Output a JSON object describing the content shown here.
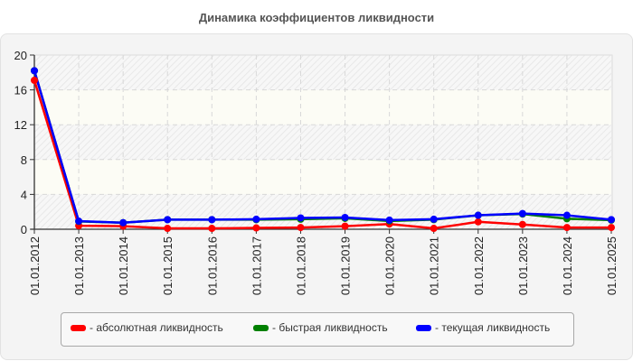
{
  "title": "Динамика коэффициентов ликвидности",
  "legend": [
    {
      "label": "- абсолютная ликвидность",
      "color": "#ff0000"
    },
    {
      "label": "- быстрая ликвидность",
      "color": "#008000"
    },
    {
      "label": "- текущая ликвидность",
      "color": "#0000ff"
    }
  ],
  "chart_data": {
    "type": "line",
    "title": "Динамика коэффициентов ликвидности",
    "xlabel": "",
    "ylabel": "",
    "ylim": [
      0,
      20
    ],
    "yticks": [
      0,
      4,
      8,
      12,
      16,
      20
    ],
    "grid": true,
    "legend_position": "bottom",
    "categories": [
      "01.01.2012",
      "01.01.2013",
      "01.01.2014",
      "01.01.2015",
      "01.01.2016",
      "01.01.2017",
      "01.01.2018",
      "01.01.2019",
      "01.01.2020",
      "01.01.2021",
      "01.01.2022",
      "01.01.2023",
      "01.01.2024",
      "01.01.2025"
    ],
    "series": [
      {
        "name": "абсолютная ликвидность",
        "color": "#ff0000",
        "values": [
          17.1,
          0.4,
          0.35,
          0.1,
          0.1,
          0.15,
          0.2,
          0.35,
          0.6,
          0.1,
          0.85,
          0.55,
          0.2,
          0.2
        ]
      },
      {
        "name": "быстрая ликвидность",
        "color": "#008000",
        "values": [
          18.2,
          0.9,
          0.75,
          1.1,
          1.1,
          1.1,
          1.15,
          1.25,
          0.95,
          1.1,
          1.6,
          1.75,
          1.2,
          1.05
        ]
      },
      {
        "name": "текущая ликвидность",
        "color": "#0000ff",
        "values": [
          18.2,
          0.93,
          0.75,
          1.1,
          1.1,
          1.15,
          1.3,
          1.35,
          1.05,
          1.15,
          1.6,
          1.8,
          1.6,
          1.1
        ]
      }
    ]
  }
}
